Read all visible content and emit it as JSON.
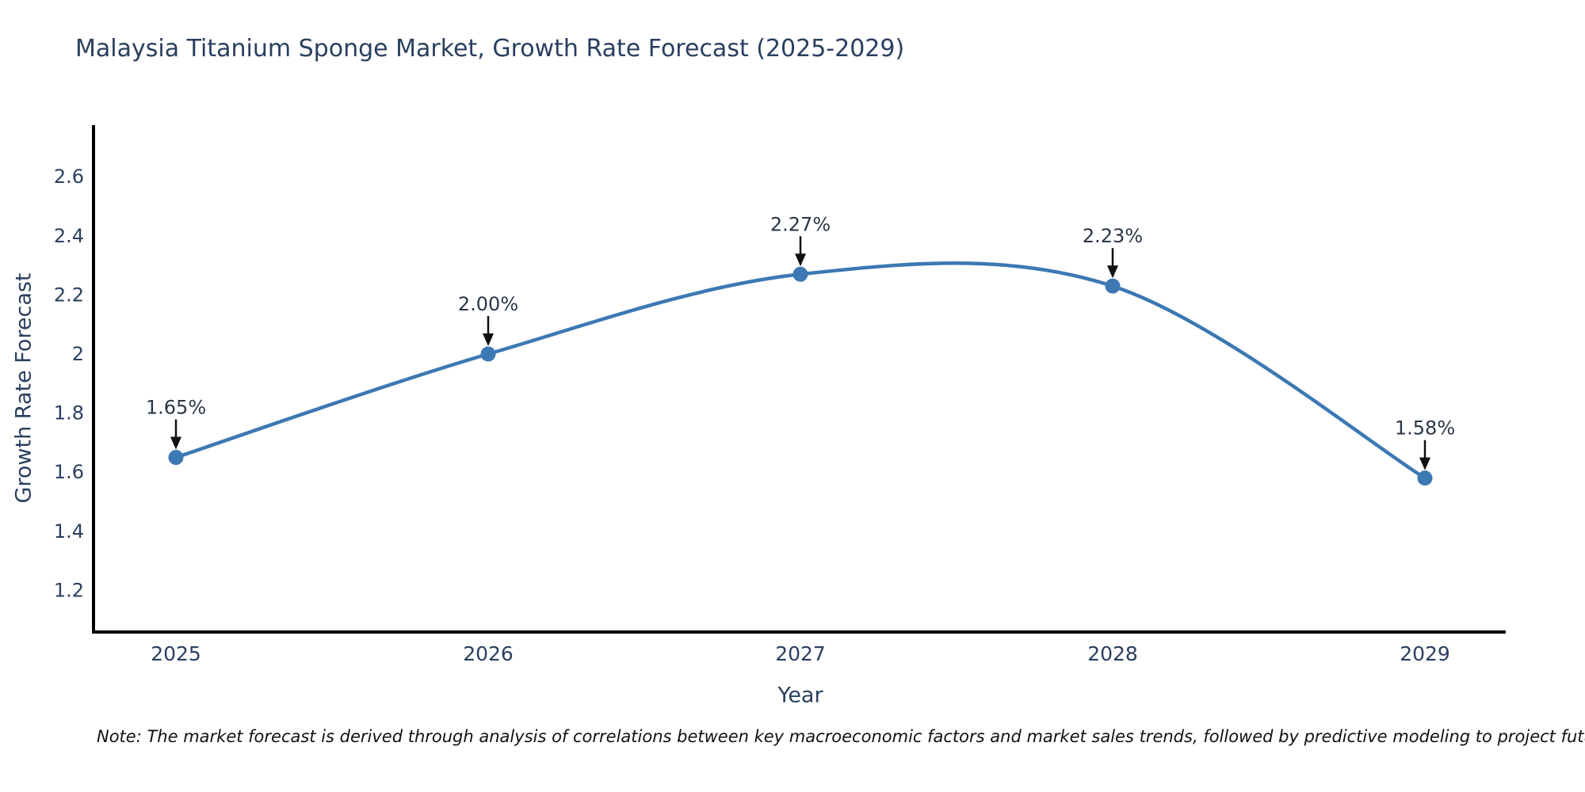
{
  "title": "Malaysia Titanium Sponge Market, Growth Rate Forecast (2025-2029)",
  "footnote": "Note: The market forecast is derived through analysis of correlations between key macroeconomic factors and market sales trends, followed by predictive modeling to project future sales",
  "chart_data": {
    "type": "line",
    "line_shape": "spline",
    "title": "Malaysia Titanium Sponge Market, Growth Rate Forecast (2025-2029)",
    "xlabel": "Year",
    "ylabel": "Growth Rate Forecast",
    "categories": [
      "2025",
      "2026",
      "2027",
      "2028",
      "2029"
    ],
    "values": [
      1.65,
      2.0,
      2.27,
      2.23,
      1.58
    ],
    "point_labels": [
      "1.65%",
      "2.00%",
      "2.27%",
      "2.23%",
      "1.58%"
    ],
    "y_tick_labels": [
      "2.6",
      "2.4",
      "2.2",
      "2",
      "1.8",
      "1.6",
      "1.4",
      "1.2"
    ],
    "y_tick_values": [
      2.6,
      2.4,
      2.2,
      2.0,
      1.8,
      1.6,
      1.4,
      1.2
    ],
    "ylim": [
      1.05,
      2.77
    ],
    "grid": false,
    "legend": "none",
    "marker": "circle",
    "annotation_arrows": true,
    "colors": {
      "line": "#3c78b3",
      "marker": "#3c78b3",
      "axis_line": "#000000",
      "tick_text": "#2a3f5f",
      "annotation_text": "#2a3648",
      "arrow": "#111111",
      "title_text": "#2a3f5f",
      "background": "#ffffff"
    }
  }
}
